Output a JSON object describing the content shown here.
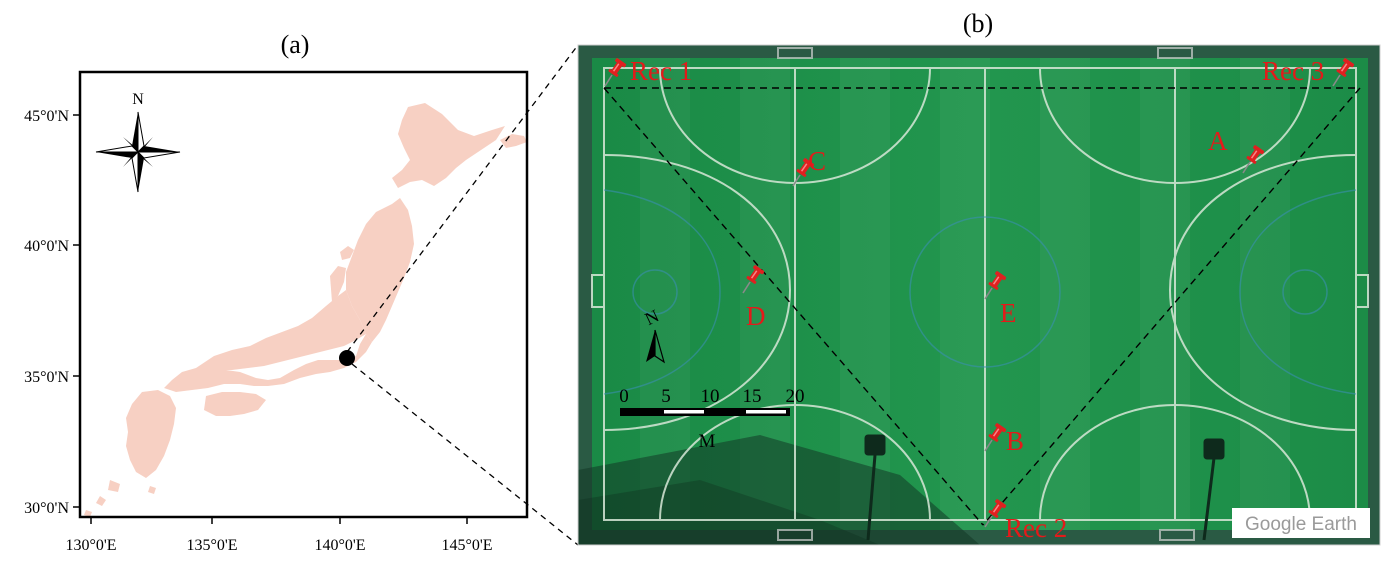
{
  "panel_a": {
    "label": "(a)",
    "lat_ticks": [
      "45°0'N",
      "40°0'N",
      "35°0'N",
      "30°0'N"
    ],
    "lon_ticks": [
      "130°0'E",
      "135°0'E",
      "140°0'E",
      "145°0'E"
    ],
    "north_label": "N",
    "land_color": "#f7d0c3",
    "site_marker_color": "#000000"
  },
  "panel_b": {
    "label": "(b)",
    "field_color": "#1f8f4a",
    "pin_color": "#e02020",
    "label_color": "#e41a1a",
    "points": {
      "rec1": "Rec 1",
      "rec2": "Rec 2",
      "rec3": "Rec 3",
      "a": "A",
      "b": "B",
      "c": "C",
      "d": "D",
      "e": "E"
    },
    "north_label": "N",
    "scale_ticks": [
      "0",
      "5",
      "10",
      "15",
      "20"
    ],
    "scale_unit": "M",
    "watermark": "Google Earth"
  }
}
